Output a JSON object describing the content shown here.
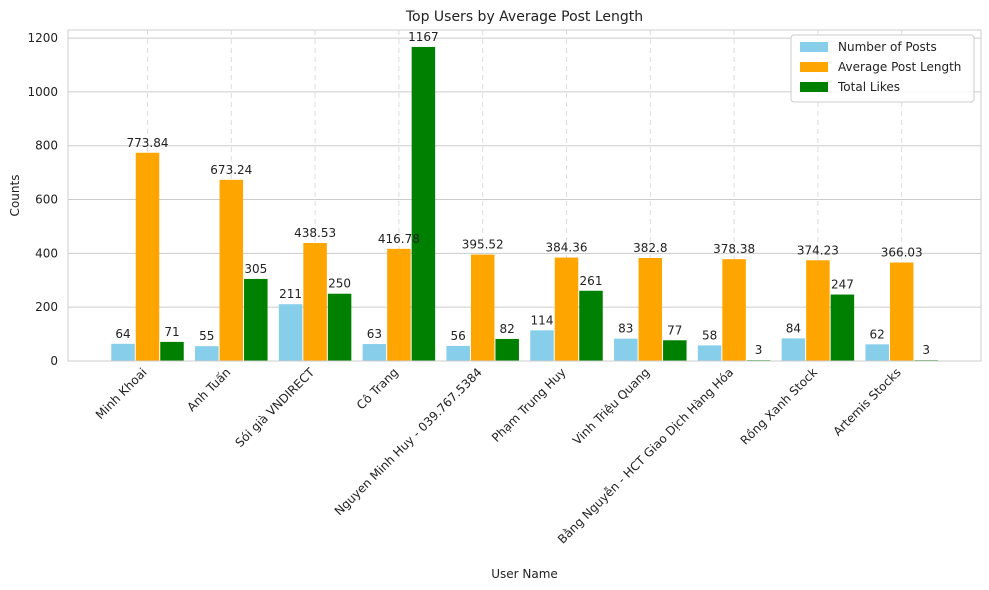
{
  "chart_data": {
    "type": "bar",
    "title": "Top Users by Average Post Length",
    "xlabel": "User Name",
    "ylabel": "Counts",
    "ylim": [
      0,
      1230
    ],
    "yticks": [
      0,
      200,
      400,
      600,
      800,
      1000,
      1200
    ],
    "grid": true,
    "legend_position": "top-right",
    "categories": [
      "Minh Khoai",
      "Anh Tuấn",
      "Sói già VNDIRECT",
      "Cô Trang",
      "Nguyen Minh Huy - 039.767.5384",
      "Phạm Trung Huy",
      "Vinh Triệu Quang",
      "Bằng Nguyễn - HCT Giao Dịch Hàng Hóa",
      "Rồng Xanh Stock",
      "Artemis Stocks"
    ],
    "series": [
      {
        "name": "Number of Posts",
        "color": "#87ceeb",
        "values": [
          64,
          55,
          211,
          63,
          56,
          114,
          83,
          58,
          84,
          62
        ],
        "labels": [
          "64",
          "55",
          "211",
          "63",
          "56",
          "114",
          "83",
          "58",
          "84",
          "62"
        ]
      },
      {
        "name": "Average Post Length",
        "color": "#ffa500",
        "values": [
          773.84,
          673.24,
          438.53,
          416.78,
          395.52,
          384.36,
          382.8,
          378.38,
          374.23,
          366.03
        ],
        "labels": [
          "773.84",
          "673.24",
          "438.53",
          "416.78",
          "395.52",
          "384.36",
          "382.8",
          "378.38",
          "374.23",
          "366.03"
        ]
      },
      {
        "name": "Total Likes",
        "color": "#008000",
        "values": [
          71,
          305,
          250,
          1167,
          82,
          261,
          77,
          3,
          247,
          3
        ],
        "labels": [
          "71",
          "305",
          "250",
          "1167",
          "82",
          "261",
          "77",
          "3",
          "247",
          "3"
        ]
      }
    ]
  }
}
